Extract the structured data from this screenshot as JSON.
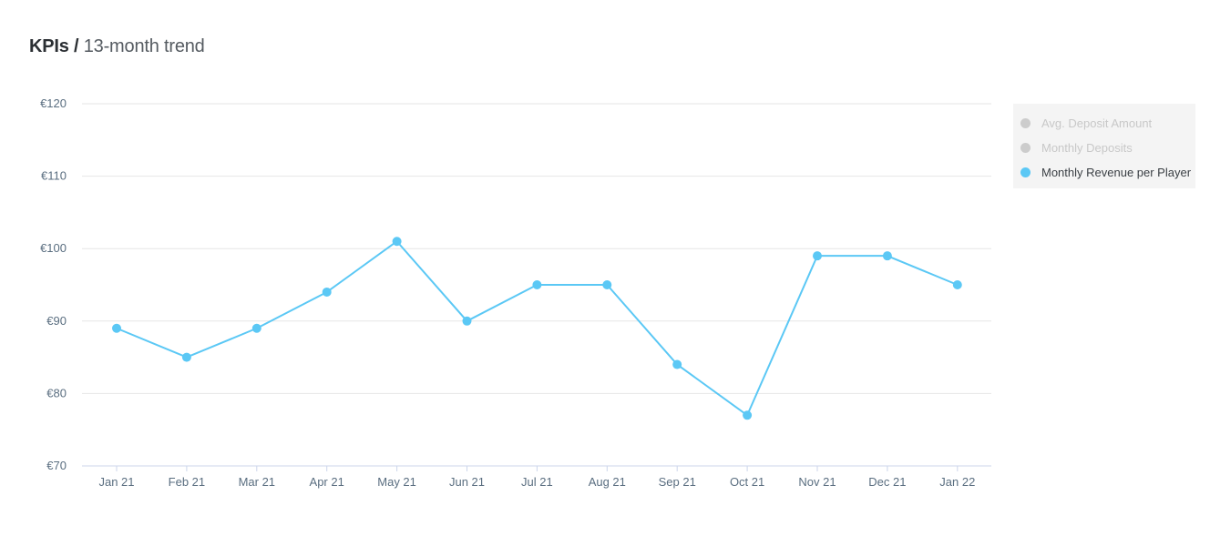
{
  "header": {
    "title_strong": "KPIs /",
    "title_light": "13-month trend"
  },
  "legend": {
    "items": [
      {
        "label": "Avg. Deposit Amount",
        "color": "#cccccc",
        "active": false
      },
      {
        "label": "Monthly Deposits",
        "color": "#cccccc",
        "active": false
      },
      {
        "label": "Monthly Revenue per Player",
        "color": "#5bc8f5",
        "active": true
      }
    ]
  },
  "chart_data": {
    "type": "line",
    "title": "",
    "xlabel": "",
    "ylabel": "",
    "categories": [
      "Jan 21",
      "Feb 21",
      "Mar 21",
      "Apr 21",
      "May 21",
      "Jun 21",
      "Jul 21",
      "Aug 21",
      "Sep 21",
      "Oct 21",
      "Nov 21",
      "Dec 21",
      "Jan 22"
    ],
    "y_ticks": [
      "€70",
      "€80",
      "€90",
      "€100",
      "€110",
      "€120"
    ],
    "ylim": [
      70,
      120
    ],
    "grid": true,
    "legend_position": "right",
    "series": [
      {
        "name": "Monthly Revenue per Player",
        "color": "#5bc8f5",
        "values": [
          89,
          85,
          89,
          94,
          101,
          90,
          95,
          95,
          84,
          77,
          99,
          99,
          95
        ]
      }
    ]
  }
}
